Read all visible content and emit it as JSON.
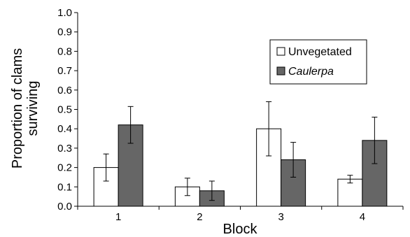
{
  "chart_data": {
    "type": "bar",
    "title": "",
    "xlabel": "Block",
    "ylabel_lines": [
      "Proportion of clams",
      "surviving"
    ],
    "categories": [
      "1",
      "2",
      "3",
      "4"
    ],
    "ylim": [
      0,
      1.0
    ],
    "yticks": [
      "0.0",
      "0.1",
      "0.2",
      "0.3",
      "0.4",
      "0.5",
      "0.6",
      "0.7",
      "0.8",
      "0.9",
      "1.0"
    ],
    "grid": false,
    "legend_position": "top-right",
    "series": [
      {
        "name": "Unvegetated",
        "fill": "#ffffff",
        "values": [
          0.2,
          0.1,
          0.4,
          0.14
        ],
        "error": [
          0.07,
          0.045,
          0.14,
          0.02
        ]
      },
      {
        "name": "Caulerpa",
        "fill": "#666666",
        "values": [
          0.42,
          0.08,
          0.24,
          0.34
        ],
        "error": [
          0.095,
          0.05,
          0.09,
          0.12
        ]
      }
    ]
  }
}
